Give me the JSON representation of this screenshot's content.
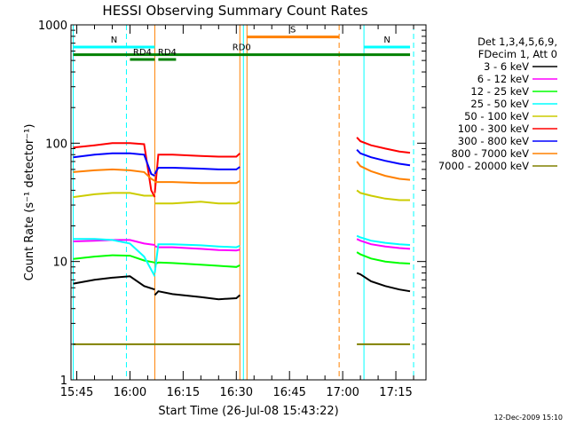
{
  "chart_data": {
    "type": "line",
    "title": "HESSI Observing Summary Count Rates",
    "xlabel": "Start Time (26-Jul-08 15:43:22)",
    "ylabel": "Count Rate (s⁻¹ detector⁻¹)",
    "y_scale": "log",
    "ylim": [
      1,
      1000
    ],
    "y_ticks": [
      {
        "value": 1,
        "label": "1"
      },
      {
        "value": 10,
        "label": "10"
      },
      {
        "value": 100,
        "label": "100"
      },
      {
        "value": 1000,
        "label": "1000"
      }
    ],
    "xlim": [
      "15:43:22",
      "17:23:30"
    ],
    "x_ticks": [
      "15:45",
      "16:00",
      "16:15",
      "16:30",
      "16:45",
      "17:00",
      "17:15"
    ],
    "grid": false,
    "legend_placement": "right",
    "legend_header": [
      "Det 1,3,4,5,6,9,",
      "FDecim 1, Att 0"
    ],
    "series": [
      {
        "name": "3 - 6 keV",
        "color": "#000000",
        "segments": [
          {
            "x": [
              "15:44",
              "15:50",
              "15:55",
              "16:00",
              "16:04",
              "16:07"
            ],
            "y": [
              6.5,
              7,
              7.3,
              7.5,
              6.2,
              5.8
            ]
          },
          {
            "x": [
              "16:07",
              "16:08",
              "16:12",
              "16:20",
              "16:25",
              "16:30",
              "16:31"
            ],
            "y": [
              5.2,
              5.6,
              5.3,
              5.0,
              4.8,
              4.9,
              5.2
            ]
          },
          {
            "x": [
              "17:04",
              "17:05",
              "17:08",
              "17:12",
              "17:16",
              "17:19"
            ],
            "y": [
              8,
              7.8,
              6.8,
              6.2,
              5.8,
              5.6
            ]
          }
        ]
      },
      {
        "name": "6 - 12 keV",
        "color": "#ff00ff",
        "segments": [
          {
            "x": [
              "15:44",
              "15:50",
              "15:55",
              "16:00",
              "16:04",
              "16:07"
            ],
            "y": [
              14.8,
              15,
              15.2,
              15.2,
              14.2,
              13.8
            ]
          },
          {
            "x": [
              "16:07",
              "16:08",
              "16:12",
              "16:20",
              "16:25",
              "16:30",
              "16:31"
            ],
            "y": [
              13.5,
              13.2,
              13.2,
              12.8,
              12.5,
              12.4,
              12.6
            ]
          },
          {
            "x": [
              "17:04",
              "17:05",
              "17:08",
              "17:12",
              "17:16",
              "17:19"
            ],
            "y": [
              15.5,
              15.0,
              14.0,
              13.4,
              13.0,
              12.8
            ]
          }
        ]
      },
      {
        "name": "12 - 25 keV",
        "color": "#00ff00",
        "segments": [
          {
            "x": [
              "15:44",
              "15:50",
              "15:55",
              "16:00",
              "16:04",
              "16:07"
            ],
            "y": [
              10.5,
              11,
              11.3,
              11.2,
              10.2,
              9.8
            ]
          },
          {
            "x": [
              "16:07",
              "16:08",
              "16:12",
              "16:20",
              "16:25",
              "16:30",
              "16:31"
            ],
            "y": [
              9.5,
              9.8,
              9.7,
              9.4,
              9.2,
              9.0,
              9.3
            ]
          },
          {
            "x": [
              "17:04",
              "17:05",
              "17:08",
              "17:12",
              "17:16",
              "17:19"
            ],
            "y": [
              12,
              11.5,
              10.6,
              10.0,
              9.7,
              9.6
            ]
          }
        ]
      },
      {
        "name": "25 - 50 keV",
        "color": "#00ffff",
        "segments": [
          {
            "x": [
              "15:44",
              "15:50",
              "15:55",
              "16:00",
              "16:04",
              "16:07"
            ],
            "y": [
              15.5,
              15.5,
              15.2,
              14.2,
              11.0,
              7.5
            ]
          },
          {
            "x": [
              "16:07",
              "16:08",
              "16:12",
              "16:20",
              "16:25",
              "16:30",
              "16:31"
            ],
            "y": [
              8.0,
              14.0,
              14.0,
              13.7,
              13.4,
              13.2,
              13.6
            ]
          },
          {
            "x": [
              "17:04",
              "17:05",
              "17:08",
              "17:12",
              "17:16",
              "17:19"
            ],
            "y": [
              16.5,
              16.0,
              15.0,
              14.4,
              14.0,
              13.8
            ]
          }
        ]
      },
      {
        "name": "50 - 100 keV",
        "color": "#cccc00",
        "segments": [
          {
            "x": [
              "15:44",
              "15:50",
              "15:55",
              "16:00",
              "16:04",
              "16:07"
            ],
            "y": [
              35,
              37,
              38,
              38,
              36,
              36
            ]
          },
          {
            "x": [
              "16:07",
              "16:08",
              "16:12",
              "16:20",
              "16:25",
              "16:30",
              "16:31"
            ],
            "y": [
              31,
              31,
              31,
              32,
              31,
              31,
              32
            ]
          },
          {
            "x": [
              "17:04",
              "17:05",
              "17:08",
              "17:12",
              "17:16",
              "17:19"
            ],
            "y": [
              40,
              38,
              36,
              34,
              33,
              33
            ]
          }
        ]
      },
      {
        "name": "100 - 300 keV",
        "color": "#ff0000",
        "segments": [
          {
            "x": [
              "15:44",
              "15:50",
              "15:55",
              "16:00",
              "16:04",
              "16:06",
              "16:07"
            ],
            "y": [
              92,
              96,
              100,
              100,
              98,
              40,
              35
            ]
          },
          {
            "x": [
              "16:07",
              "16:08",
              "16:12",
              "16:20",
              "16:25",
              "16:30",
              "16:31"
            ],
            "y": [
              38,
              80,
              80,
              78,
              77,
              77,
              82
            ]
          },
          {
            "x": [
              "17:04",
              "17:05",
              "17:08",
              "17:12",
              "17:16",
              "17:19"
            ],
            "y": [
              112,
              104,
              96,
              90,
              85,
              83
            ]
          }
        ]
      },
      {
        "name": "300 - 800 keV",
        "color": "#0000ff",
        "segments": [
          {
            "x": [
              "15:44",
              "15:50",
              "15:55",
              "16:00",
              "16:04",
              "16:06",
              "16:07"
            ],
            "y": [
              76,
              80,
              82,
              82,
              80,
              55,
              53
            ]
          },
          {
            "x": [
              "16:07",
              "16:08",
              "16:12",
              "16:20",
              "16:25",
              "16:30",
              "16:31"
            ],
            "y": [
              55,
              62,
              62,
              61,
              60,
              60,
              63
            ]
          },
          {
            "x": [
              "17:04",
              "17:05",
              "17:08",
              "17:12",
              "17:16",
              "17:19"
            ],
            "y": [
              88,
              82,
              76,
              71,
              67,
              65
            ]
          }
        ]
      },
      {
        "name": "800 - 7000 keV",
        "color": "#ff8000",
        "segments": [
          {
            "x": [
              "15:44",
              "15:50",
              "15:55",
              "16:00",
              "16:04",
              "16:06",
              "16:07"
            ],
            "y": [
              57,
              59,
              60,
              59,
              57,
              50,
              48
            ]
          },
          {
            "x": [
              "16:07",
              "16:08",
              "16:12",
              "16:20",
              "16:25",
              "16:30",
              "16:31"
            ],
            "y": [
              47,
              47,
              47,
              46,
              46,
              46,
              48
            ]
          },
          {
            "x": [
              "17:04",
              "17:05",
              "17:08",
              "17:12",
              "17:16",
              "17:19"
            ],
            "y": [
              70,
              64,
              58,
              53,
              50,
              49
            ]
          }
        ]
      },
      {
        "name": "7000 - 20000 keV",
        "color": "#808000",
        "segments": [
          {
            "x": [
              "15:44",
              "16:31"
            ],
            "y": [
              2,
              2
            ]
          },
          {
            "x": [
              "17:04",
              "17:19"
            ],
            "y": [
              2,
              2
            ]
          }
        ]
      }
    ],
    "annotations": [
      {
        "label": "N",
        "color": "#00ffff",
        "x": [
          "15:44",
          "16:07"
        ],
        "y": 650
      },
      {
        "label": "N",
        "color": "#00ffff",
        "x": [
          "17:06",
          "17:19"
        ],
        "y": 650
      },
      {
        "label": "S",
        "color": "#ff8000",
        "x": [
          "16:33",
          "16:59"
        ],
        "y": 790
      },
      {
        "label": "RD0",
        "color": "#008000",
        "x": [
          "15:44",
          "17:19"
        ],
        "y": 560
      },
      {
        "label": "RD4",
        "color": "#008000",
        "x": [
          "16:00",
          "16:07"
        ],
        "y": 510
      },
      {
        "label": "RD4",
        "color": "#008000",
        "x": [
          "16:08",
          "16:13"
        ],
        "y": 510
      }
    ],
    "markers": [
      {
        "x": "15:44",
        "color": "#00ffff",
        "style": "solid"
      },
      {
        "x": "15:59",
        "color": "#00ffff",
        "style": "dashed"
      },
      {
        "x": "16:07",
        "color": "#ff8000",
        "style": "solid"
      },
      {
        "x": "16:31",
        "color": "#ff8000",
        "style": "solid"
      },
      {
        "x": "16:32",
        "color": "#00ffff",
        "style": "solid"
      },
      {
        "x": "16:33",
        "color": "#ff8000",
        "style": "solid"
      },
      {
        "x": "16:59",
        "color": "#ff8000",
        "style": "dashed"
      },
      {
        "x": "17:06",
        "color": "#00ffff",
        "style": "solid"
      },
      {
        "x": "17:20",
        "color": "#00ffff",
        "style": "dashed"
      }
    ],
    "footer_date": "12-Dec-2009 15:10"
  }
}
